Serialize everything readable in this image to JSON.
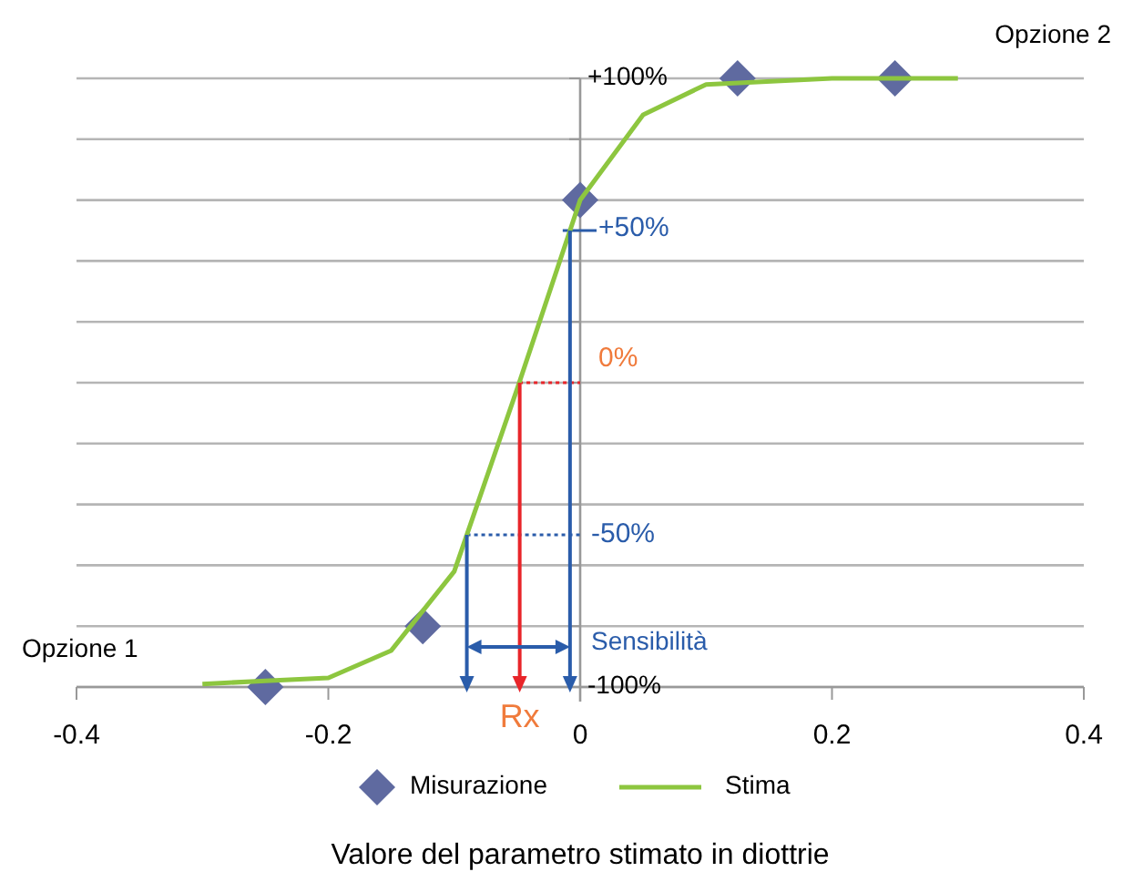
{
  "chart_data": {
    "type": "line",
    "xlabel": "Valore del parametro stimato in diottrie",
    "xlim": [
      -0.4,
      0.4
    ],
    "xticks": [
      -0.4,
      -0.2,
      0,
      0.2,
      0.4
    ],
    "ylim": [
      -100,
      100
    ],
    "yticks": [
      {
        "value": -100,
        "label": "-100%"
      },
      {
        "value": -80,
        "label": null
      },
      {
        "value": -60,
        "label": null
      },
      {
        "value": -40,
        "label": null
      },
      {
        "value": -20,
        "label": null
      },
      {
        "value": 0,
        "label": null
      },
      {
        "value": 20,
        "label": null
      },
      {
        "value": 40,
        "label": null
      },
      {
        "value": 60,
        "label": null
      },
      {
        "value": 80,
        "label": null
      },
      {
        "value": 100,
        "label": "+100%"
      }
    ],
    "grid": "y",
    "legend": "bottom",
    "ref_lines": [
      {
        "axis": "y",
        "value": 50,
        "label": "+50%",
        "color": "#2a5caa",
        "line_style": "solid"
      },
      {
        "axis": "y",
        "value": 0,
        "label": "0%",
        "color": "#e8252a",
        "line_style": "dotted"
      },
      {
        "axis": "y",
        "value": -50,
        "label": "-50%",
        "color": "#2a5caa",
        "line_style": "dotted"
      }
    ],
    "series": [
      {
        "name": "Misurazione",
        "type": "scatter",
        "marker": "diamond",
        "color": "#5f6aa0",
        "x": [
          -0.25,
          -0.125,
          0,
          0.125,
          0.25
        ],
        "values": [
          -100,
          -80,
          60,
          100,
          100
        ]
      },
      {
        "name": "Stima",
        "marker": "none",
        "line_style": "solid",
        "color": "#8dc63f",
        "x": [
          -0.3,
          -0.25,
          -0.2,
          -0.15,
          -0.1,
          -0.05,
          0,
          0.05,
          0.1,
          0.2,
          0.3
        ],
        "values": [
          -99,
          -98,
          -97,
          -88,
          -62,
          -2,
          60,
          88,
          98,
          100,
          100
        ]
      }
    ],
    "annotations": [
      {
        "text": "Rx",
        "x": -0.048,
        "y": -100
      },
      "Sensibilità",
      "Opzione 1",
      "Opzione 2"
    ]
  }
}
